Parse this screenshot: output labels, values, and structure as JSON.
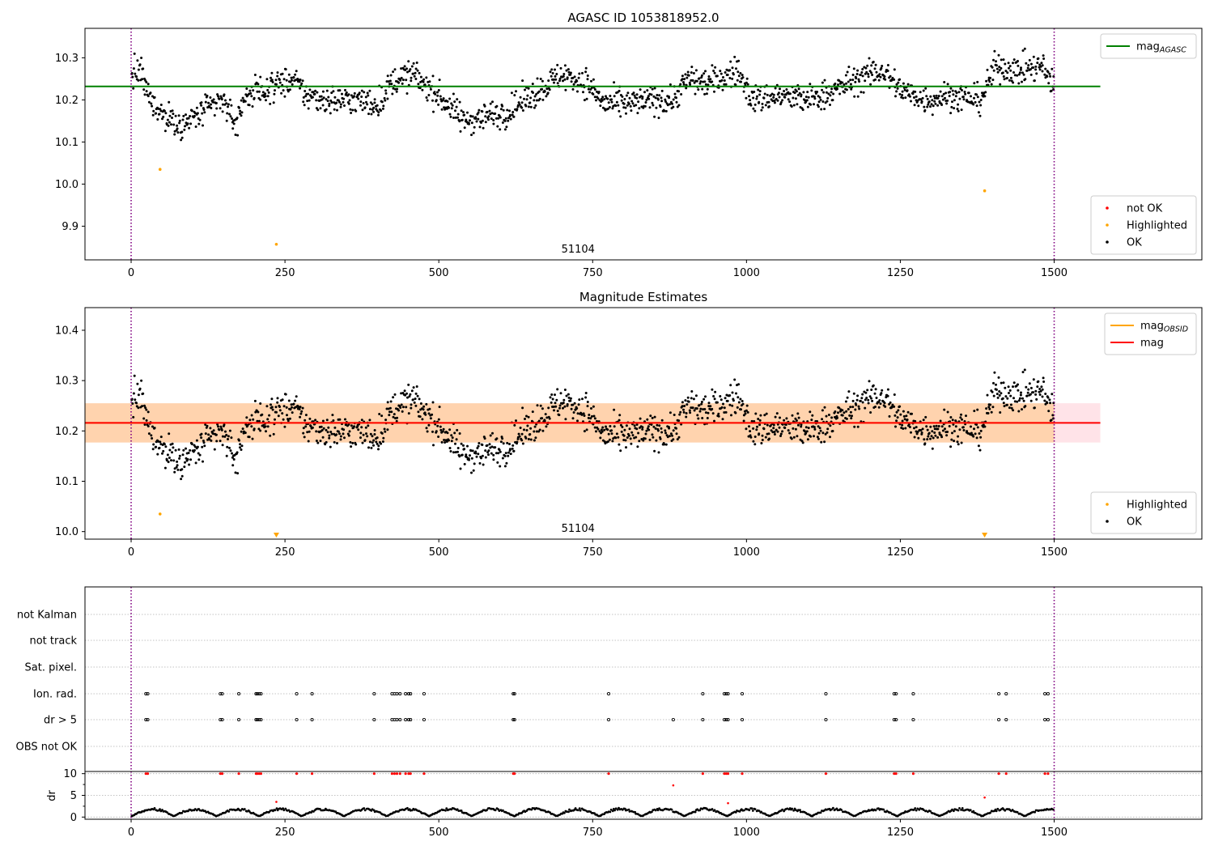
{
  "chart_data": [
    {
      "type": "scatter",
      "title": "AGASC ID 1053818952.0",
      "xlabel": "",
      "ylabel": "",
      "xlim": [
        -75,
        1740
      ],
      "ylim": [
        9.82,
        10.37
      ],
      "xticks": [
        0,
        250,
        500,
        750,
        1000,
        1250,
        1500
      ],
      "xtick_labels": [
        "0",
        "250",
        "500",
        "750",
        "1000",
        "1250",
        "1500"
      ],
      "yticks": [
        9.9,
        10.0,
        10.1,
        10.2,
        10.3
      ],
      "ytick_labels": [
        "9.9",
        "10.0",
        "10.1",
        "10.2",
        "10.3"
      ],
      "annotation": "51104",
      "annotation_x": 750,
      "vlines": [
        0,
        1500
      ],
      "vline_color": "#800080",
      "reference_line": {
        "name": "mag_AGASC",
        "y": 10.232,
        "x": [
          -75,
          1575
        ],
        "color": "#008000"
      },
      "series": [
        {
          "name": "not OK",
          "color": "#ff0000",
          "points": []
        },
        {
          "name": "Highlighted",
          "color": "#ffa500",
          "points": [
            [
              47,
              10.035
            ],
            [
              236,
              9.857
            ],
            [
              1387,
              9.984
            ]
          ]
        },
        {
          "name": "OK",
          "color": "#000000",
          "generated": true
        }
      ],
      "legends": [
        {
          "position": "top-right",
          "entries": [
            {
              "label": "mag",
              "sub": "AGASC",
              "kind": "line",
              "color": "#008000"
            }
          ]
        },
        {
          "position": "lower-right",
          "entries": [
            {
              "label": "not OK",
              "kind": "dot",
              "color": "#ff0000"
            },
            {
              "label": "Highlighted",
              "kind": "dot",
              "color": "#ffa500"
            },
            {
              "label": "OK",
              "kind": "dot",
              "color": "#000000"
            }
          ]
        }
      ]
    },
    {
      "type": "scatter",
      "title": "Magnitude Estimates",
      "xlabel": "",
      "ylabel": "",
      "xlim": [
        -75,
        1740
      ],
      "ylim": [
        9.985,
        10.445
      ],
      "xticks": [
        0,
        250,
        500,
        750,
        1000,
        1250,
        1500
      ],
      "xtick_labels": [
        "0",
        "250",
        "500",
        "750",
        "1000",
        "1250",
        "1500"
      ],
      "yticks": [
        10.0,
        10.1,
        10.2,
        10.3,
        10.4
      ],
      "ytick_labels": [
        "10.0",
        "10.1",
        "10.2",
        "10.3",
        "10.4"
      ],
      "annotation": "51104",
      "annotation_x": 750,
      "vlines": [
        0,
        1500
      ],
      "vline_color": "#800080",
      "bands": [
        {
          "y0": 10.177,
          "y1": 10.255,
          "x": [
            -75,
            1575
          ],
          "color": "#ffc0cb",
          "opacity": 0.45
        },
        {
          "y0": 10.177,
          "y1": 10.255,
          "x": [
            -75,
            1500
          ],
          "color": "#ffa500",
          "opacity": 0.25
        }
      ],
      "lines": [
        {
          "name": "mag_OBSID",
          "y": 10.216,
          "x": [
            -75,
            1500
          ],
          "color": "#ffa500"
        },
        {
          "name": "mag",
          "y": 10.216,
          "x": [
            -75,
            1575
          ],
          "color": "#ff0000"
        }
      ],
      "series": [
        {
          "name": "Highlighted",
          "color": "#ffa500",
          "points": [
            [
              47,
              10.035
            ]
          ]
        },
        {
          "name": "Highlighted (below range)",
          "color": "#ffa500",
          "marker": "triangle-down",
          "points": [
            [
              236,
              9.99
            ],
            [
              1387,
              9.99
            ]
          ]
        },
        {
          "name": "OK",
          "color": "#000000",
          "generated": true
        }
      ],
      "legends": [
        {
          "position": "top-right",
          "entries": [
            {
              "label": "mag",
              "sub": "OBSID",
              "kind": "line",
              "color": "#ffa500"
            },
            {
              "label": "mag",
              "sub": "",
              "kind": "line",
              "color": "#ff0000"
            }
          ]
        },
        {
          "position": "lower-right",
          "entries": [
            {
              "label": "Highlighted",
              "kind": "dot",
              "color": "#ffa500"
            },
            {
              "label": "OK",
              "kind": "dot",
              "color": "#000000"
            }
          ]
        }
      ]
    },
    {
      "type": "scatter",
      "title": "",
      "xlim": [
        -75,
        1740
      ],
      "xticks": [
        0,
        250,
        500,
        750,
        1000,
        1250,
        1500
      ],
      "xtick_labels": [
        "0",
        "250",
        "500",
        "750",
        "1000",
        "1250",
        "1500"
      ],
      "vlines": [
        0,
        1500
      ],
      "vline_color": "#800080",
      "flag_rows": [
        "not Kalman",
        "not track",
        "Sat. pixel.",
        "Ion. rad.",
        "dr > 5",
        "OBS not OK"
      ],
      "ion_rad_x": [
        24,
        27,
        145,
        148,
        175,
        203,
        205,
        208,
        211,
        269,
        294,
        395,
        424,
        428,
        432,
        437,
        446,
        451,
        454,
        476,
        621,
        623,
        776,
        929,
        964,
        967,
        970,
        993,
        1129,
        1240,
        1243,
        1271,
        1410,
        1422,
        1485,
        1490
      ],
      "dr_gt5_x": [
        24,
        27,
        145,
        148,
        175,
        203,
        205,
        208,
        211,
        269,
        294,
        395,
        424,
        428,
        432,
        437,
        446,
        451,
        454,
        476,
        621,
        623,
        776,
        881,
        929,
        964,
        967,
        970,
        993,
        1129,
        1240,
        1243,
        1271,
        1410,
        1422,
        1485,
        1490
      ],
      "dr_panel": {
        "ylabel": "dr",
        "ylim": [
          -0.5,
          10.5
        ],
        "yticks": [
          0,
          5,
          10
        ],
        "ytick_labels": [
          "0",
          "5",
          "10"
        ],
        "high_x": [
          24,
          27,
          145,
          148,
          175,
          203,
          205,
          208,
          211,
          269,
          294,
          395,
          424,
          428,
          432,
          437,
          446,
          451,
          454,
          476,
          621,
          623,
          776,
          929,
          964,
          967,
          970,
          993,
          1129,
          1240,
          1243,
          1271,
          1410,
          1422,
          1485,
          1490
        ],
        "high_value": 10,
        "mid_points": [
          [
            881,
            7.3
          ],
          [
            236,
            3.5
          ],
          [
            970,
            3.2
          ],
          [
            1387,
            4.5
          ]
        ],
        "low_series": {
          "name": "dr",
          "color": "#000000",
          "generated": true
        }
      }
    }
  ]
}
